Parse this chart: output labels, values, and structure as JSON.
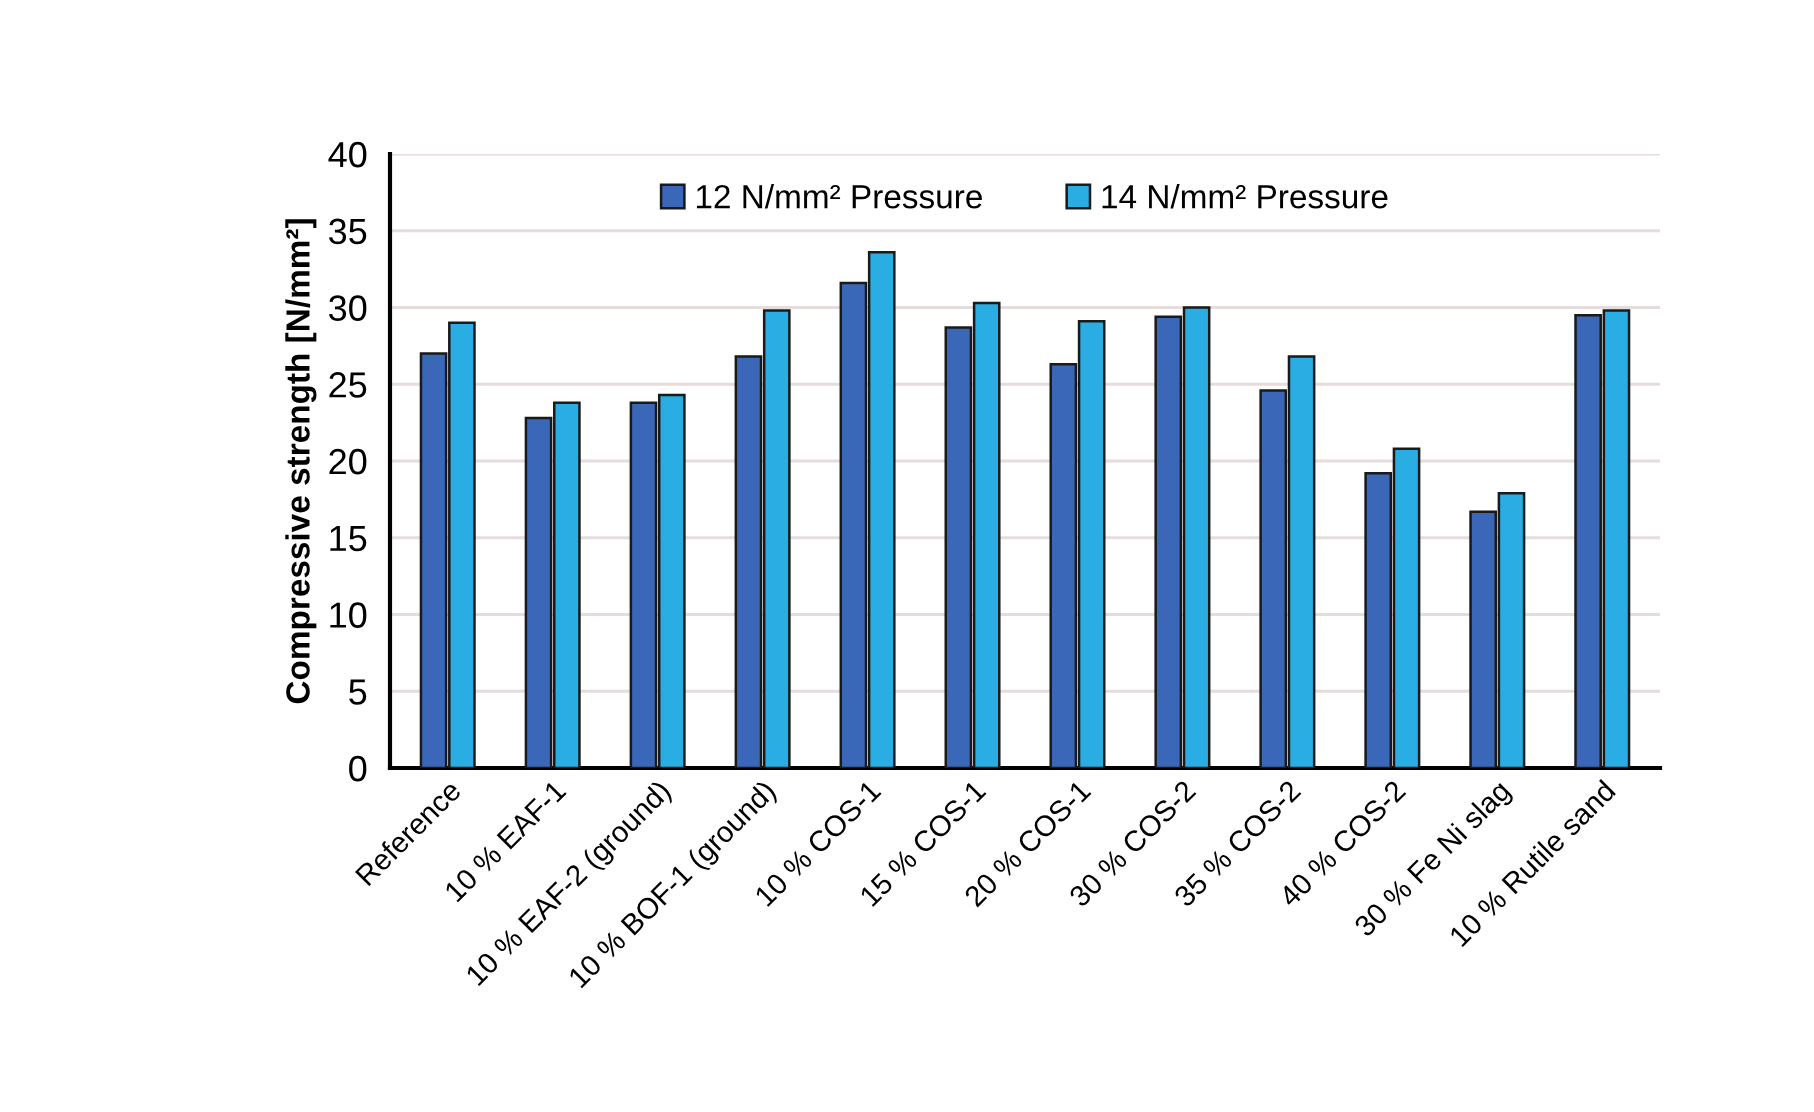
{
  "chart_data": {
    "type": "bar",
    "ylabel": "Compressive strength [N/mm²]",
    "categories": [
      "Reference",
      "10 % EAF-1",
      "10 % EAF-2 (ground)",
      "10 % BOF-1 (ground)",
      "10 % COS-1",
      "15 % COS-1",
      "20 % COS-1",
      "30 % COS-2",
      "35 % COS-2",
      "40 % COS-2",
      "30 % Fe Ni slag",
      "10 % Rutile sand"
    ],
    "series": [
      {
        "name": "12 N/mm² Pressure",
        "color": "#3a67b8",
        "values": [
          27.0,
          22.8,
          23.8,
          26.8,
          31.6,
          28.7,
          26.3,
          29.4,
          24.6,
          19.2,
          16.7,
          29.5
        ]
      },
      {
        "name": "14 N/mm² Pressure",
        "color": "#2aade2",
        "values": [
          29.0,
          23.8,
          24.3,
          29.8,
          33.6,
          30.3,
          29.1,
          30.0,
          26.8,
          20.8,
          17.9,
          29.8
        ]
      }
    ],
    "ylim": [
      0,
      40
    ],
    "yticks": [
      0,
      5,
      10,
      15,
      20,
      25,
      30,
      35,
      40
    ],
    "grid": "y",
    "legend": "top"
  }
}
